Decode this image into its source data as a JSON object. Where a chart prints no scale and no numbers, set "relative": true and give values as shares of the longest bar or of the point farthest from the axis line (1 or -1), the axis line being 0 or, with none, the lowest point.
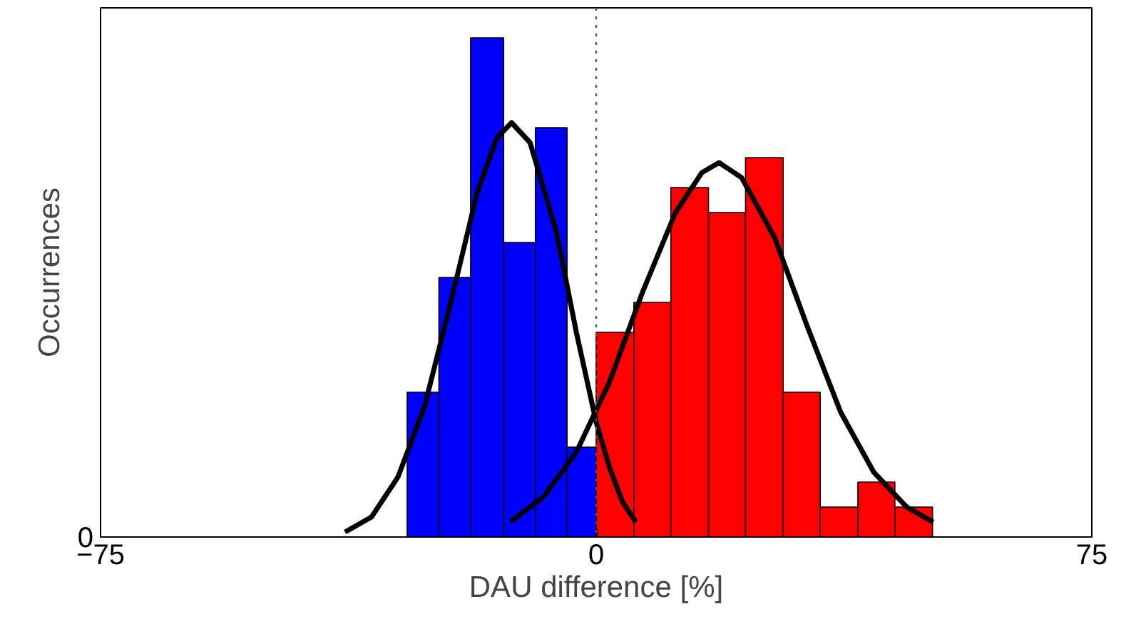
{
  "chart_data": {
    "type": "histogram",
    "xlabel": "DAU difference [%]",
    "ylabel": "Occurrences",
    "relative": true,
    "xlim": [
      -75,
      75
    ],
    "xticks": [
      -75,
      0,
      75
    ],
    "annotations": [
      "0"
    ],
    "grid": false,
    "series": [
      {
        "color": "#0000ff",
        "bins": [
          -28.6,
          -23.8,
          -19.0,
          -14.0,
          -9.2,
          -4.4,
          0
        ],
        "values": [
          0.29,
          0.52,
          1.0,
          0.59,
          0.82,
          0.18
        ]
      },
      {
        "color": "#ff0000",
        "bins": [
          0,
          5.7,
          11.3,
          17.0,
          22.6,
          28.3,
          33.9,
          39.6,
          45.2,
          50.9
        ],
        "values": [
          0.41,
          0.47,
          0.7,
          0.65,
          0.76,
          0.29,
          0.06,
          0.11,
          0.06
        ]
      },
      {
        "type": "line",
        "color": "#000000",
        "x": [
          -38,
          -34,
          -30,
          -26,
          -22,
          -18,
          -15,
          -12.8,
          -10,
          -6,
          -3,
          0,
          2,
          4,
          6
        ],
        "values": [
          0.01,
          0.04,
          0.12,
          0.26,
          0.47,
          0.69,
          0.8,
          0.83,
          0.79,
          0.61,
          0.41,
          0.23,
          0.14,
          0.07,
          0.03
        ]
      },
      {
        "type": "line",
        "color": "#000000",
        "x": [
          -13,
          -8,
          -3,
          2,
          7,
          12,
          16,
          18.6,
          22,
          27,
          32,
          37,
          42,
          47,
          51
        ],
        "values": [
          0.03,
          0.08,
          0.17,
          0.31,
          0.49,
          0.65,
          0.73,
          0.75,
          0.72,
          0.6,
          0.42,
          0.25,
          0.13,
          0.06,
          0.03
        ]
      }
    ],
    "ref_lines": [
      {
        "axis": "x",
        "value": 0,
        "line_style": "dotted",
        "color": "#555555"
      }
    ]
  }
}
